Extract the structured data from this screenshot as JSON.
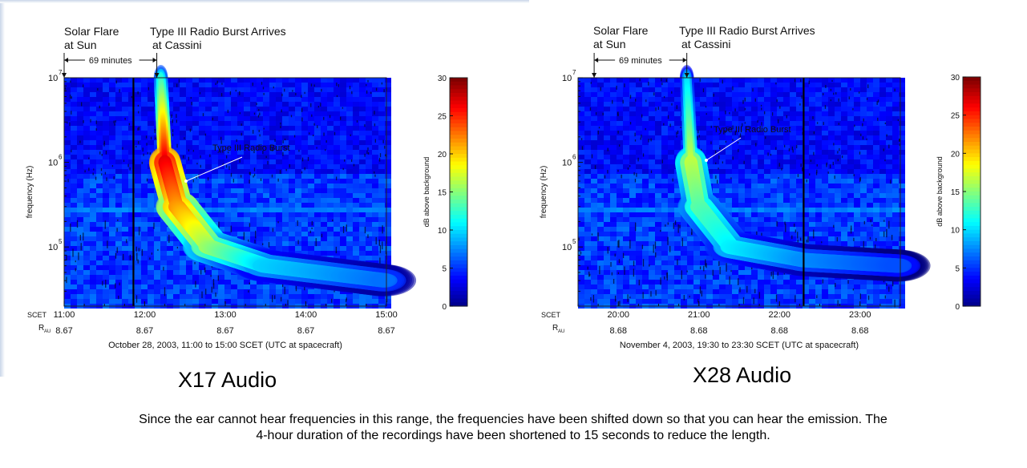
{
  "panels": [
    {
      "title": "X17 Audio",
      "annotations": {
        "flare_line1": "Solar Flare",
        "flare_line2": "at Sun",
        "arrival_line1": "Type III Radio Burst Arrives",
        "arrival_line2": "at Cassini",
        "interval": "69 minutes",
        "burst_label": "Type III Radio Burst"
      },
      "ylabel": "frequency (Hz)",
      "yticks": [
        {
          "base": "10",
          "exp": "7"
        },
        {
          "base": "10",
          "exp": "6"
        },
        {
          "base": "10",
          "exp": "5"
        }
      ],
      "x_row_label": "SCET",
      "r_row_label_main": "R",
      "r_row_label_sub": "AU",
      "xticks": [
        {
          "time": "11:00",
          "r": "8.67"
        },
        {
          "time": "12:00",
          "r": "8.67"
        },
        {
          "time": "13:00",
          "r": "8.67"
        },
        {
          "time": "14:00",
          "r": "8.67"
        },
        {
          "time": "15:00",
          "r": "8.67"
        }
      ],
      "xlabel": "October 28, 2003, 11:00 to 15:00 SCET (UTC at spacecraft)",
      "colorbar_label": "dB above background",
      "colorbar_ticks": [
        "0",
        "5",
        "10",
        "15",
        "20",
        "25",
        "30"
      ]
    },
    {
      "title": "X28 Audio",
      "annotations": {
        "flare_line1": "Solar Flare",
        "flare_line2": "at Sun",
        "arrival_line1": "Type III Radio Burst Arrives",
        "arrival_line2": "at Cassini",
        "interval": "69 minutes",
        "burst_label": "Type III Radio Burst"
      },
      "ylabel": "frequency (Hz)",
      "yticks": [
        {
          "base": "10",
          "exp": "7"
        },
        {
          "base": "10",
          "exp": "6"
        },
        {
          "base": "10",
          "exp": "5"
        }
      ],
      "x_row_label": "SCET",
      "r_row_label_main": "R",
      "r_row_label_sub": "AU",
      "xticks": [
        {
          "time": "20:00",
          "r": "8.68"
        },
        {
          "time": "21:00",
          "r": "8.68"
        },
        {
          "time": "22:00",
          "r": "8.68"
        },
        {
          "time": "23:00",
          "r": "8.68"
        }
      ],
      "xlabel": "November 4, 2003, 19:30 to 23:30 SCET (UTC at spacecraft)",
      "colorbar_label": "dB above background",
      "colorbar_ticks": [
        "0",
        "5",
        "10",
        "15",
        "20",
        "25",
        "30"
      ]
    }
  ],
  "caption_line1": "Since the ear cannot hear frequencies in this range, the frequencies have been shifted down so that you can hear the emission. The",
  "caption_line2": "4-hour duration of the recordings have been shortened to 15 seconds to reduce the length.",
  "chart_data": [
    {
      "type": "heatmap",
      "title": "X17 Audio",
      "xlabel": "October 28, 2003, 11:00 to 15:00 SCET (UTC at spacecraft)",
      "ylabel": "frequency (Hz)",
      "x_range_hours": [
        11,
        15
      ],
      "y_range_hz": [
        20000,
        10000000
      ],
      "y_scale": "log",
      "z_label": "dB above background",
      "z_range": [
        0,
        30
      ],
      "colormap": "jet",
      "events": [
        {
          "name": "Solar Flare at Sun",
          "x_hour": 11.0
        },
        {
          "name": "Type III Radio Burst Arrives at Cassini",
          "x_hour": 12.15
        }
      ],
      "interval_minutes": 69,
      "burst_ridge": [
        {
          "x_hour": 12.2,
          "freq_hz": 10000000,
          "db": 12
        },
        {
          "x_hour": 12.25,
          "freq_hz": 1000000,
          "db": 27
        },
        {
          "x_hour": 12.4,
          "freq_hz": 300000,
          "db": 22
        },
        {
          "x_hour": 12.8,
          "freq_hz": 100000,
          "db": 16
        },
        {
          "x_hour": 13.5,
          "freq_hz": 60000,
          "db": 10
        },
        {
          "x_hour": 15.0,
          "freq_hz": 40000,
          "db": 7
        }
      ]
    },
    {
      "type": "heatmap",
      "title": "X28 Audio",
      "xlabel": "November 4, 2003, 19:30 to 23:30 SCET (UTC at spacecraft)",
      "ylabel": "frequency (Hz)",
      "x_range_hours": [
        19.5,
        23.5
      ],
      "y_range_hz": [
        20000,
        10000000
      ],
      "y_scale": "log",
      "z_label": "dB above background",
      "z_range": [
        0,
        30
      ],
      "colormap": "jet",
      "events": [
        {
          "name": "Solar Flare at Sun",
          "x_hour": 19.7
        },
        {
          "name": "Type III Radio Burst Arrives at Cassini",
          "x_hour": 20.85
        }
      ],
      "interval_minutes": 69,
      "burst_ridge": [
        {
          "x_hour": 20.85,
          "freq_hz": 10000000,
          "db": 10
        },
        {
          "x_hour": 20.9,
          "freq_hz": 1000000,
          "db": 17
        },
        {
          "x_hour": 21.0,
          "freq_hz": 300000,
          "db": 14
        },
        {
          "x_hour": 21.4,
          "freq_hz": 100000,
          "db": 11
        },
        {
          "x_hour": 22.3,
          "freq_hz": 70000,
          "db": 8
        },
        {
          "x_hour": 23.5,
          "freq_hz": 60000,
          "db": 6
        }
      ]
    }
  ]
}
